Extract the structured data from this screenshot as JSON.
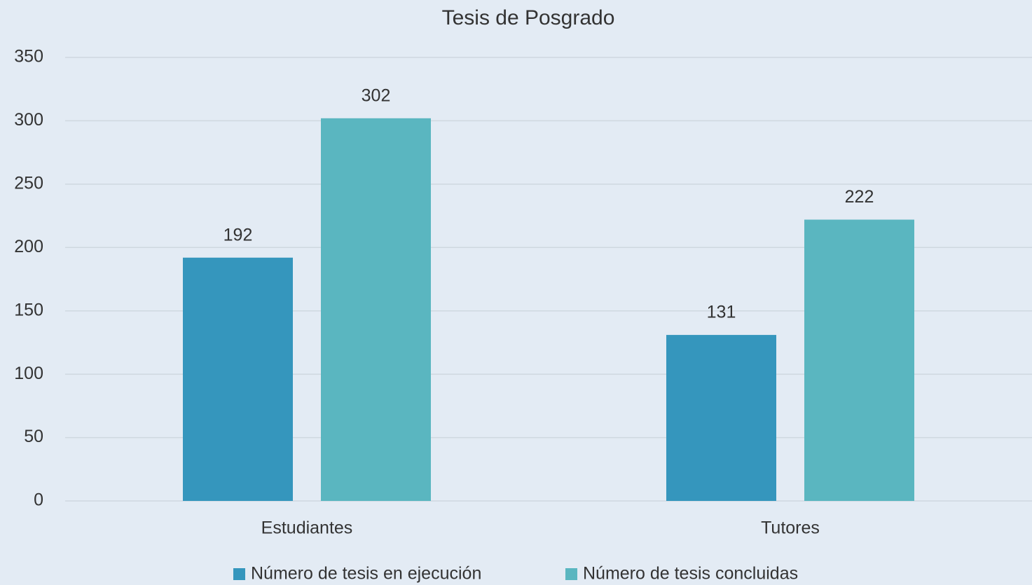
{
  "chart_data": {
    "type": "bar",
    "title": "Tesis de Posgrado",
    "categories": [
      "Estudiantes",
      "Tutores"
    ],
    "series": [
      {
        "name": "Número de tesis en ejecución",
        "color": "#3596bd",
        "values": [
          192,
          131
        ]
      },
      {
        "name": "Número de tesis concluidas",
        "color": "#5ab6c0",
        "values": [
          302,
          222
        ]
      }
    ],
    "ylim": [
      0,
      350
    ],
    "yticks": [
      0,
      50,
      100,
      150,
      200,
      250,
      300,
      350
    ],
    "grid": true,
    "legend": "bottom"
  }
}
